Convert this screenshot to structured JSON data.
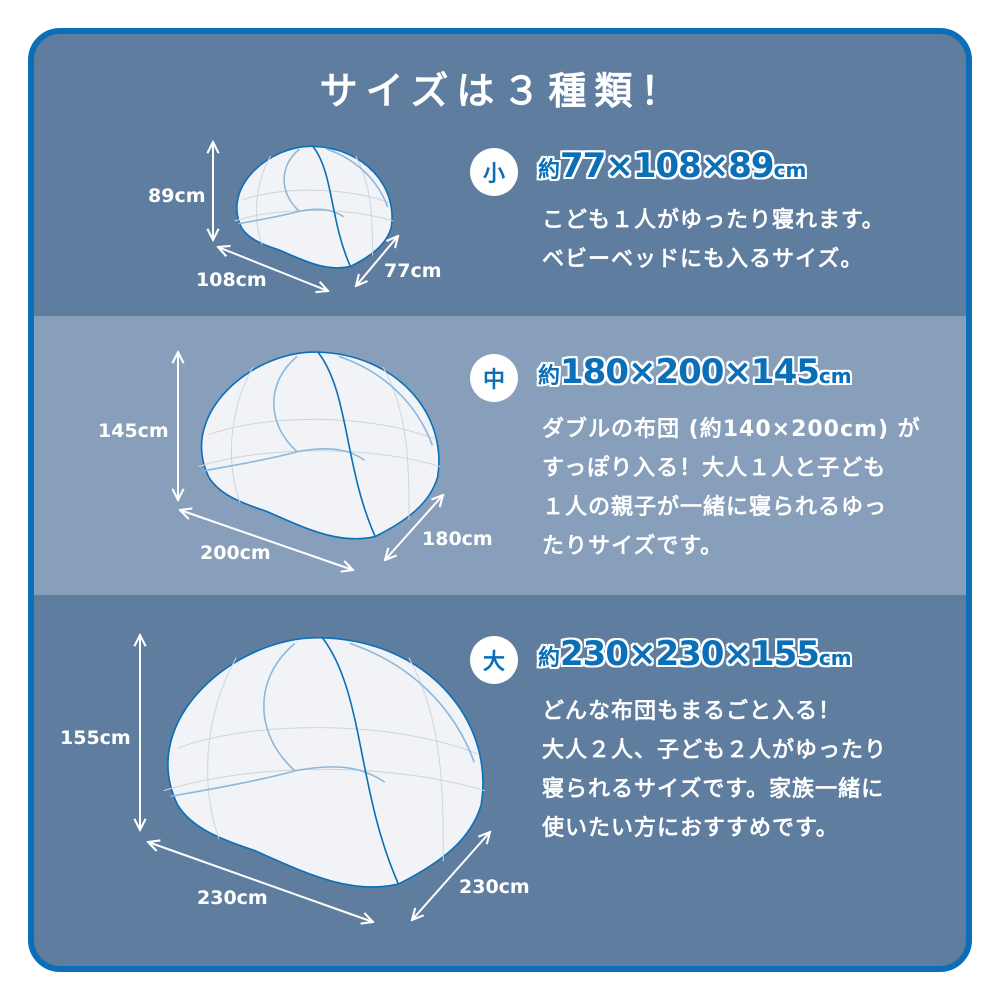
{
  "title": "サイズは３種類！",
  "colors": {
    "border": "#0b6fb8",
    "background": "#5f7d9f",
    "band": "#879fba",
    "heading": "#0b6fb8"
  },
  "sizes": [
    {
      "badge": "小",
      "prefix": "約",
      "dims": "77×108×89",
      "unit": "cm",
      "lines": [
        "こども１人がゆったり寝れます。",
        "ベビーベッドにも入るサイズ。"
      ],
      "height_label": "89cm",
      "width_label": "108cm",
      "depth_label": "77cm"
    },
    {
      "badge": "中",
      "prefix": "約",
      "dims": "180×200×145",
      "unit": "cm",
      "lines": [
        "ダブルの布団 (約140×200cm) が",
        "すっぽり入る！大人１人と子ども",
        "１人の親子が一緒に寝られるゆっ",
        "たりサイズです。"
      ],
      "height_label": "145cm",
      "width_label": "200cm",
      "depth_label": "180cm"
    },
    {
      "badge": "大",
      "prefix": "約",
      "dims": "230×230×155",
      "unit": "cm",
      "lines": [
        "どんな布団もまるごと入る！",
        "大人２人、子ども２人がゆったり",
        "寝られるサイズです。家族一緒に",
        "使いたい方におすすめです。"
      ],
      "height_label": "155cm",
      "width_label": "230cm",
      "depth_label": "230cm"
    }
  ]
}
